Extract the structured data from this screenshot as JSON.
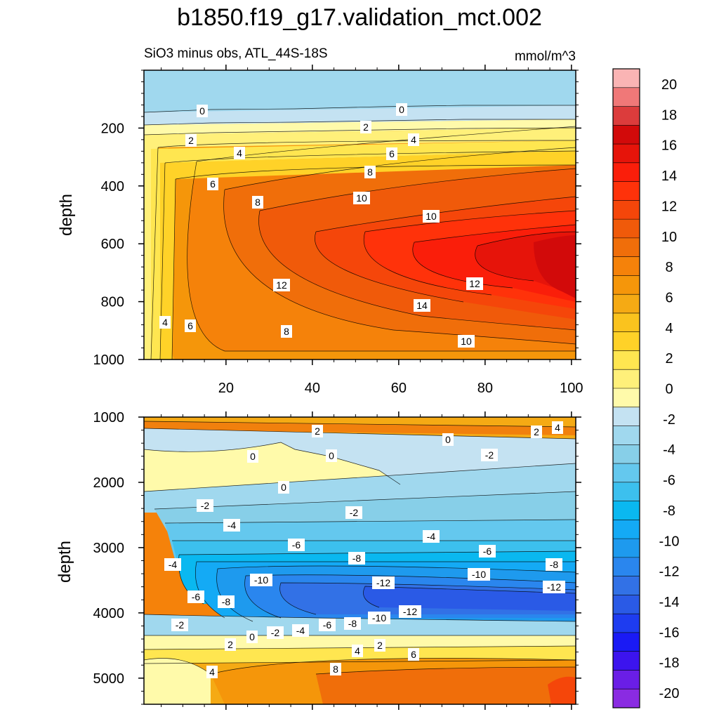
{
  "chart_data": {
    "type": "heatmap",
    "title": "b1850.f19_g17.validation_mct.002",
    "subtitle_left": "SiO3 minus obs, ATL_44S-18S",
    "units": "mmol/m^3",
    "colorbar": {
      "levels": [
        -20,
        -18,
        -16,
        -14,
        -12,
        -10,
        -8,
        -6,
        -4,
        -2,
        0,
        2,
        4,
        6,
        8,
        10,
        12,
        14,
        16,
        18,
        20
      ],
      "labels": [
        "20",
        "18",
        "16",
        "14",
        "12",
        "10",
        "8",
        "6",
        "4",
        "2",
        "0",
        "-2",
        "-4",
        "-6",
        "-8",
        "-10",
        "-12",
        "-14",
        "-16",
        "-18",
        "-20"
      ],
      "colors": [
        "#8a2be2",
        "#6a1ee6",
        "#3c14ee",
        "#1a1af5",
        "#1e3cf0",
        "#2a5ae6",
        "#3271e6",
        "#2a86ee",
        "#1e9aee",
        "#14aaf5",
        "#0ab8f0",
        "#3cc0ee",
        "#64c8ee",
        "#87cfe8",
        "#a0d8ee",
        "#c4e2f2",
        "#fffaaa",
        "#fff07a",
        "#ffe650",
        "#ffd228",
        "#fac31e",
        "#f5aa14",
        "#f5960a",
        "#f5820a",
        "#f06e0a",
        "#f05a0a",
        "#f5460a",
        "#ff320a",
        "#fa1e0a",
        "#e6140a",
        "#d20a0a",
        "#dc3c3c",
        "#f07878",
        "#fab4b4"
      ]
    },
    "panels": [
      {
        "name": "upper",
        "ylabel": "depth",
        "x_range": [
          1,
          101
        ],
        "y_range": [
          0,
          1000
        ],
        "x_ticks": [
          "20",
          "40",
          "60",
          "80",
          "100"
        ],
        "y_ticks": [
          "200",
          "400",
          "600",
          "800",
          "1000"
        ],
        "contour_labels": [
          "0",
          "0",
          "2",
          "2",
          "4",
          "4",
          "6",
          "6",
          "8",
          "8",
          "10",
          "10",
          "12",
          "12",
          "14",
          "4",
          "6",
          "8",
          "10"
        ]
      },
      {
        "name": "lower",
        "ylabel": "depth",
        "x_range": [
          1,
          101
        ],
        "y_range": [
          1000,
          5400
        ],
        "y_ticks": [
          "1000",
          "2000",
          "3000",
          "4000",
          "5000"
        ],
        "contour_labels": [
          "2",
          "2",
          "4",
          "0",
          "0",
          "0",
          "-2",
          "0",
          "-2",
          "-2",
          "-4",
          "-4",
          "-6",
          "-6",
          "-8",
          "-8",
          "-4",
          "-10",
          "-12",
          "-10",
          "-12",
          "-6",
          "-8",
          "-2",
          "0",
          "-2",
          "-4",
          "-6",
          "-8",
          "-10",
          "-12",
          "2",
          "4",
          "2",
          "6",
          "4",
          "8"
        ]
      }
    ]
  }
}
